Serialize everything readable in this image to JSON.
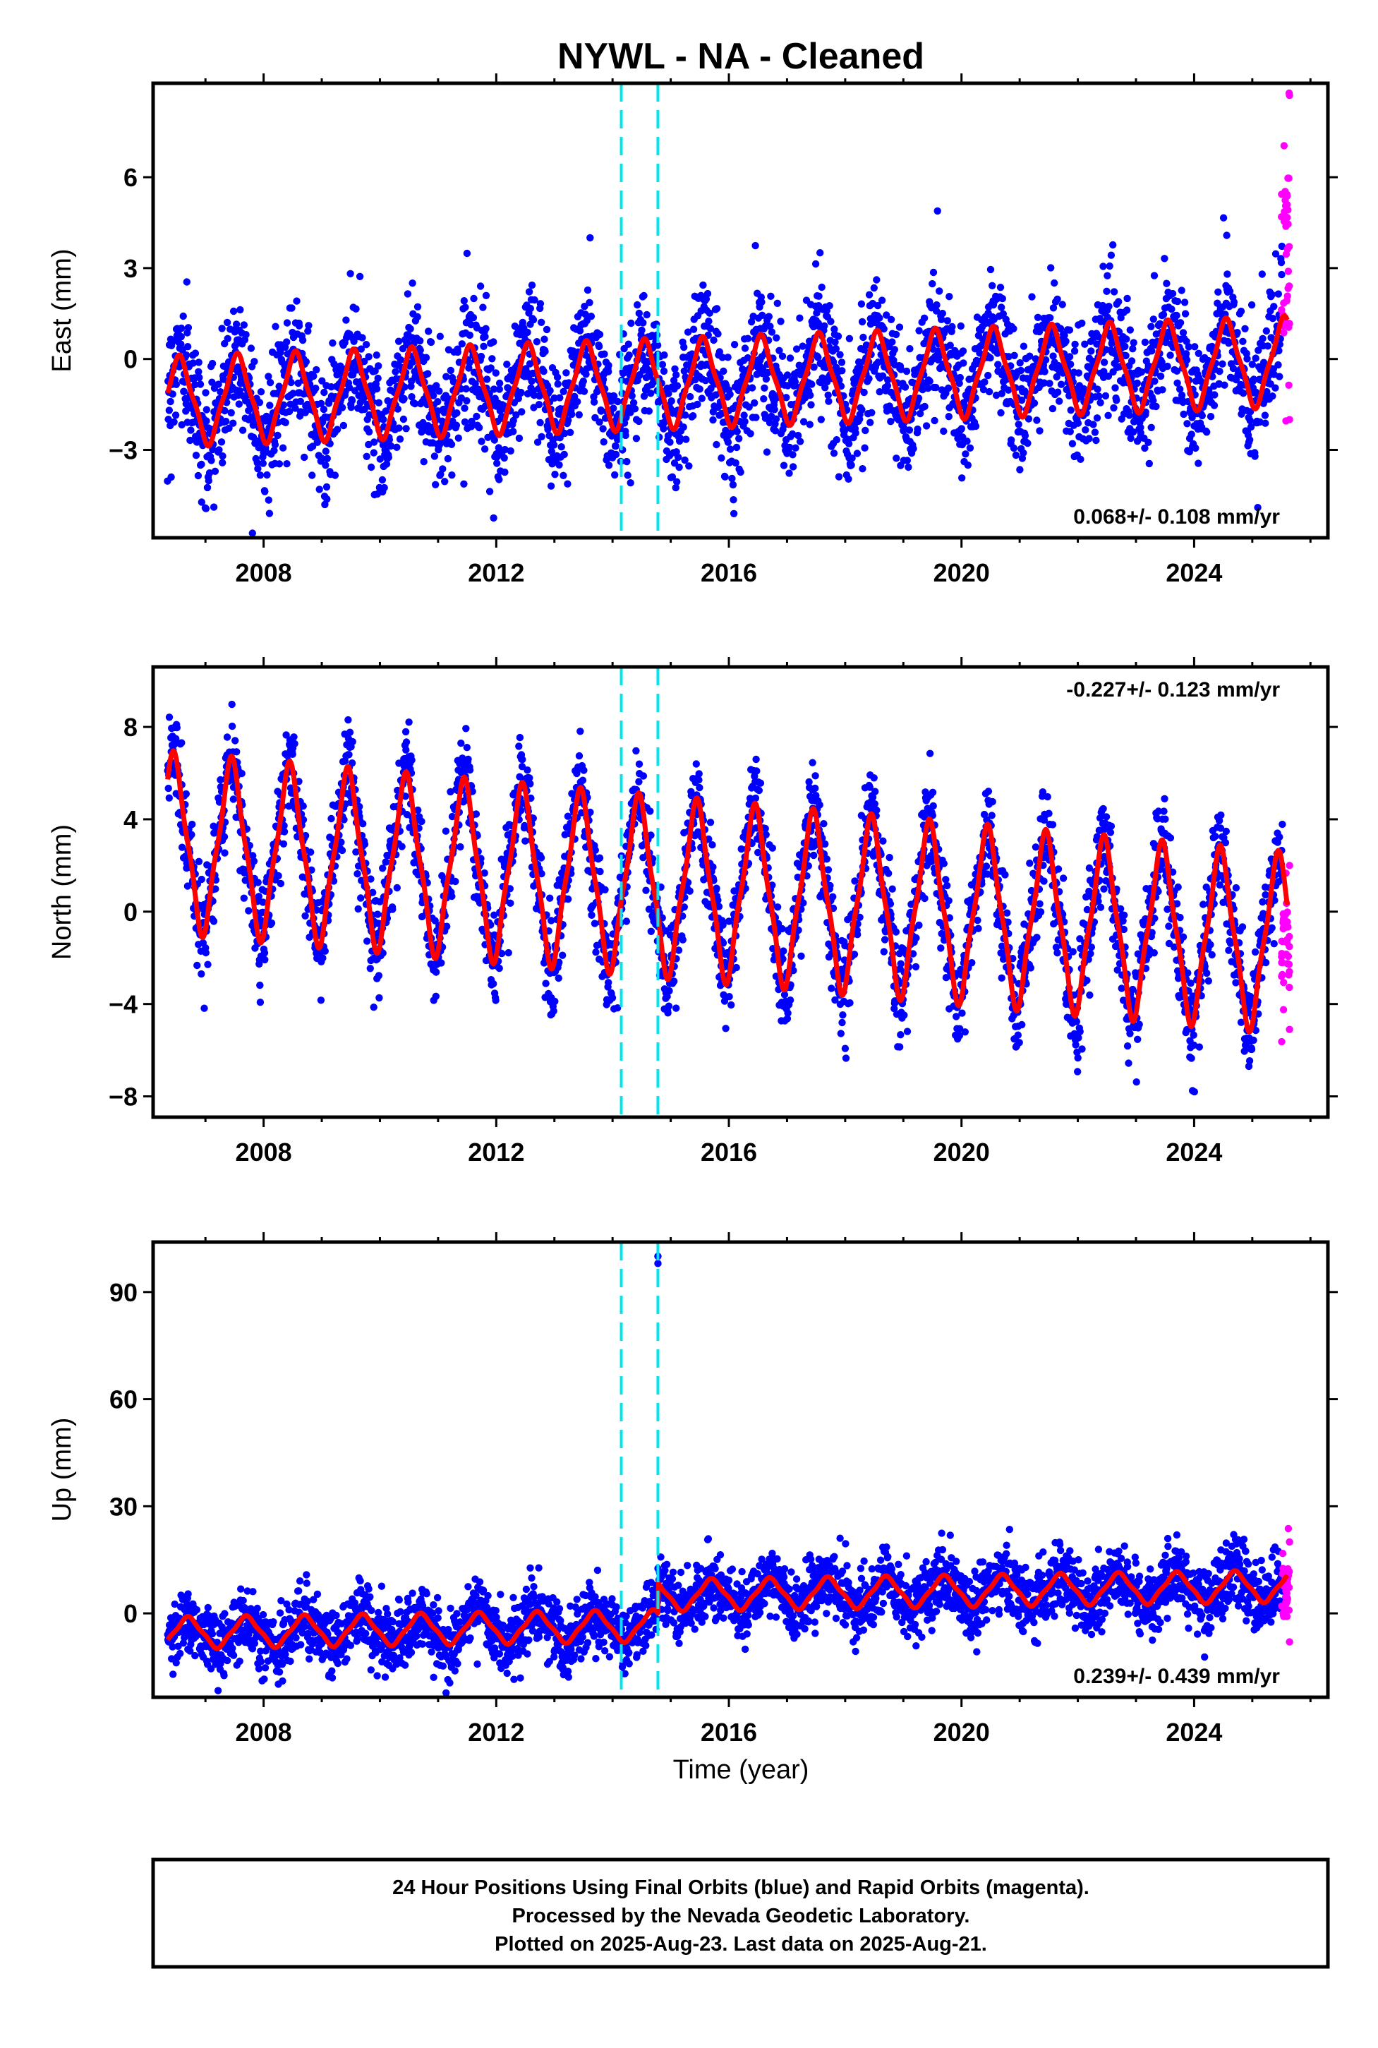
{
  "title": "NYWL  - NA - Cleaned",
  "xlabel": "Time (year)",
  "footer": {
    "line1": "24 Hour Positions Using Final Orbits (blue) and Rapid Orbits (magenta).",
    "line2": "Processed by the Nevada Geodetic Laboratory.",
    "line3": "Plotted on 2025-Aug-23. Last data on 2025-Aug-21."
  },
  "colors": {
    "final_orbits": "#0000ff",
    "rapid_orbits": "#ff00ff",
    "model_fit": "#ff0000",
    "event_lines": "#00e5ee",
    "frame": "#000000"
  },
  "chart_data": [
    {
      "id": "east",
      "type": "scatter",
      "ylabel": "East (mm)",
      "rate_label": "0.068+/- 0.108 mm/yr",
      "rate_position": "bottom-right",
      "xlim": [
        2006.1,
        2026.3
      ],
      "ylim": [
        -5.9,
        9.1
      ],
      "yticks": [
        -3,
        0,
        3,
        6
      ],
      "ytick_labels": [
        "−3",
        "0",
        "3",
        "6"
      ],
      "xticks": [
        2008,
        2012,
        2016,
        2020,
        2024
      ],
      "xtick_labels": [
        "2008",
        "2012",
        "2016",
        "2020",
        "2024"
      ],
      "event_lines": [
        2014.15,
        2014.78
      ],
      "series": [
        {
          "role": "final_orbits",
          "x_range": [
            2006.35,
            2025.52
          ],
          "mean_fit": {
            "start": -1.4,
            "slope": 0.068,
            "amplitude": 1.6,
            "annual_peak_phase": 0.55
          },
          "scatter_sd": 1.05
        },
        {
          "role": "rapid_orbits",
          "x_range": [
            2025.5,
            2025.64
          ],
          "y_range": [
            -2.0,
            8.7
          ]
        },
        {
          "role": "model_fit",
          "x_range": [
            2006.35,
            2025.6
          ]
        }
      ]
    },
    {
      "id": "north",
      "type": "scatter",
      "ylabel": "North (mm)",
      "rate_label": "-0.227+/- 0.123 mm/yr",
      "rate_position": "top-right",
      "xlim": [
        2006.1,
        2026.3
      ],
      "ylim": [
        -8.9,
        10.6
      ],
      "yticks": [
        -8,
        -4,
        0,
        4,
        8
      ],
      "ytick_labels": [
        "−8",
        "−4",
        "0",
        "4",
        "8"
      ],
      "xticks": [
        2008,
        2012,
        2016,
        2020,
        2024
      ],
      "xtick_labels": [
        "2008",
        "2012",
        "2016",
        "2020",
        "2024"
      ],
      "event_lines": [
        2014.15,
        2014.78
      ],
      "series": [
        {
          "role": "final_orbits",
          "x_range": [
            2006.35,
            2025.52
          ],
          "mean_fit": {
            "start": 3.0,
            "slope": -0.227,
            "amplitude": 4.2,
            "annual_peak_phase": 0.45
          },
          "scatter_sd": 1.05
        },
        {
          "role": "rapid_orbits",
          "x_range": [
            2025.5,
            2025.64
          ],
          "y_range": [
            -5.1,
            2.0
          ]
        },
        {
          "role": "model_fit",
          "x_range": [
            2006.35,
            2025.6
          ]
        }
      ]
    },
    {
      "id": "up",
      "type": "scatter",
      "ylabel": "Up (mm)",
      "rate_label": "0.239+/- 0.439 mm/yr",
      "rate_position": "bottom-right",
      "xlim": [
        2006.1,
        2026.3
      ],
      "ylim": [
        -23.5,
        104
      ],
      "yticks": [
        0,
        30,
        60,
        90
      ],
      "ytick_labels": [
        "0",
        "30",
        "60",
        "90"
      ],
      "xticks": [
        2008,
        2012,
        2016,
        2020,
        2024
      ],
      "xtick_labels": [
        "2008",
        "2012",
        "2016",
        "2020",
        "2024"
      ],
      "event_lines": [
        2014.15,
        2014.78
      ],
      "offset_at": {
        "x": 2014.78,
        "size": 8.5
      },
      "outliers": [
        {
          "x": 2014.78,
          "y": 100
        },
        {
          "x": 2014.78,
          "y": 98
        }
      ],
      "series": [
        {
          "role": "final_orbits",
          "x_range": [
            2006.35,
            2025.52
          ],
          "mean_fit": {
            "start": -5.5,
            "slope": 0.239,
            "amplitude": 4.8,
            "annual_peak_phase": 0.7
          },
          "scatter_sd": 4.6
        },
        {
          "role": "rapid_orbits",
          "x_range": [
            2025.5,
            2025.64
          ],
          "y_range": [
            -8.0,
            20.0
          ]
        },
        {
          "role": "model_fit",
          "x_range": [
            2006.35,
            2025.6
          ]
        }
      ]
    }
  ]
}
